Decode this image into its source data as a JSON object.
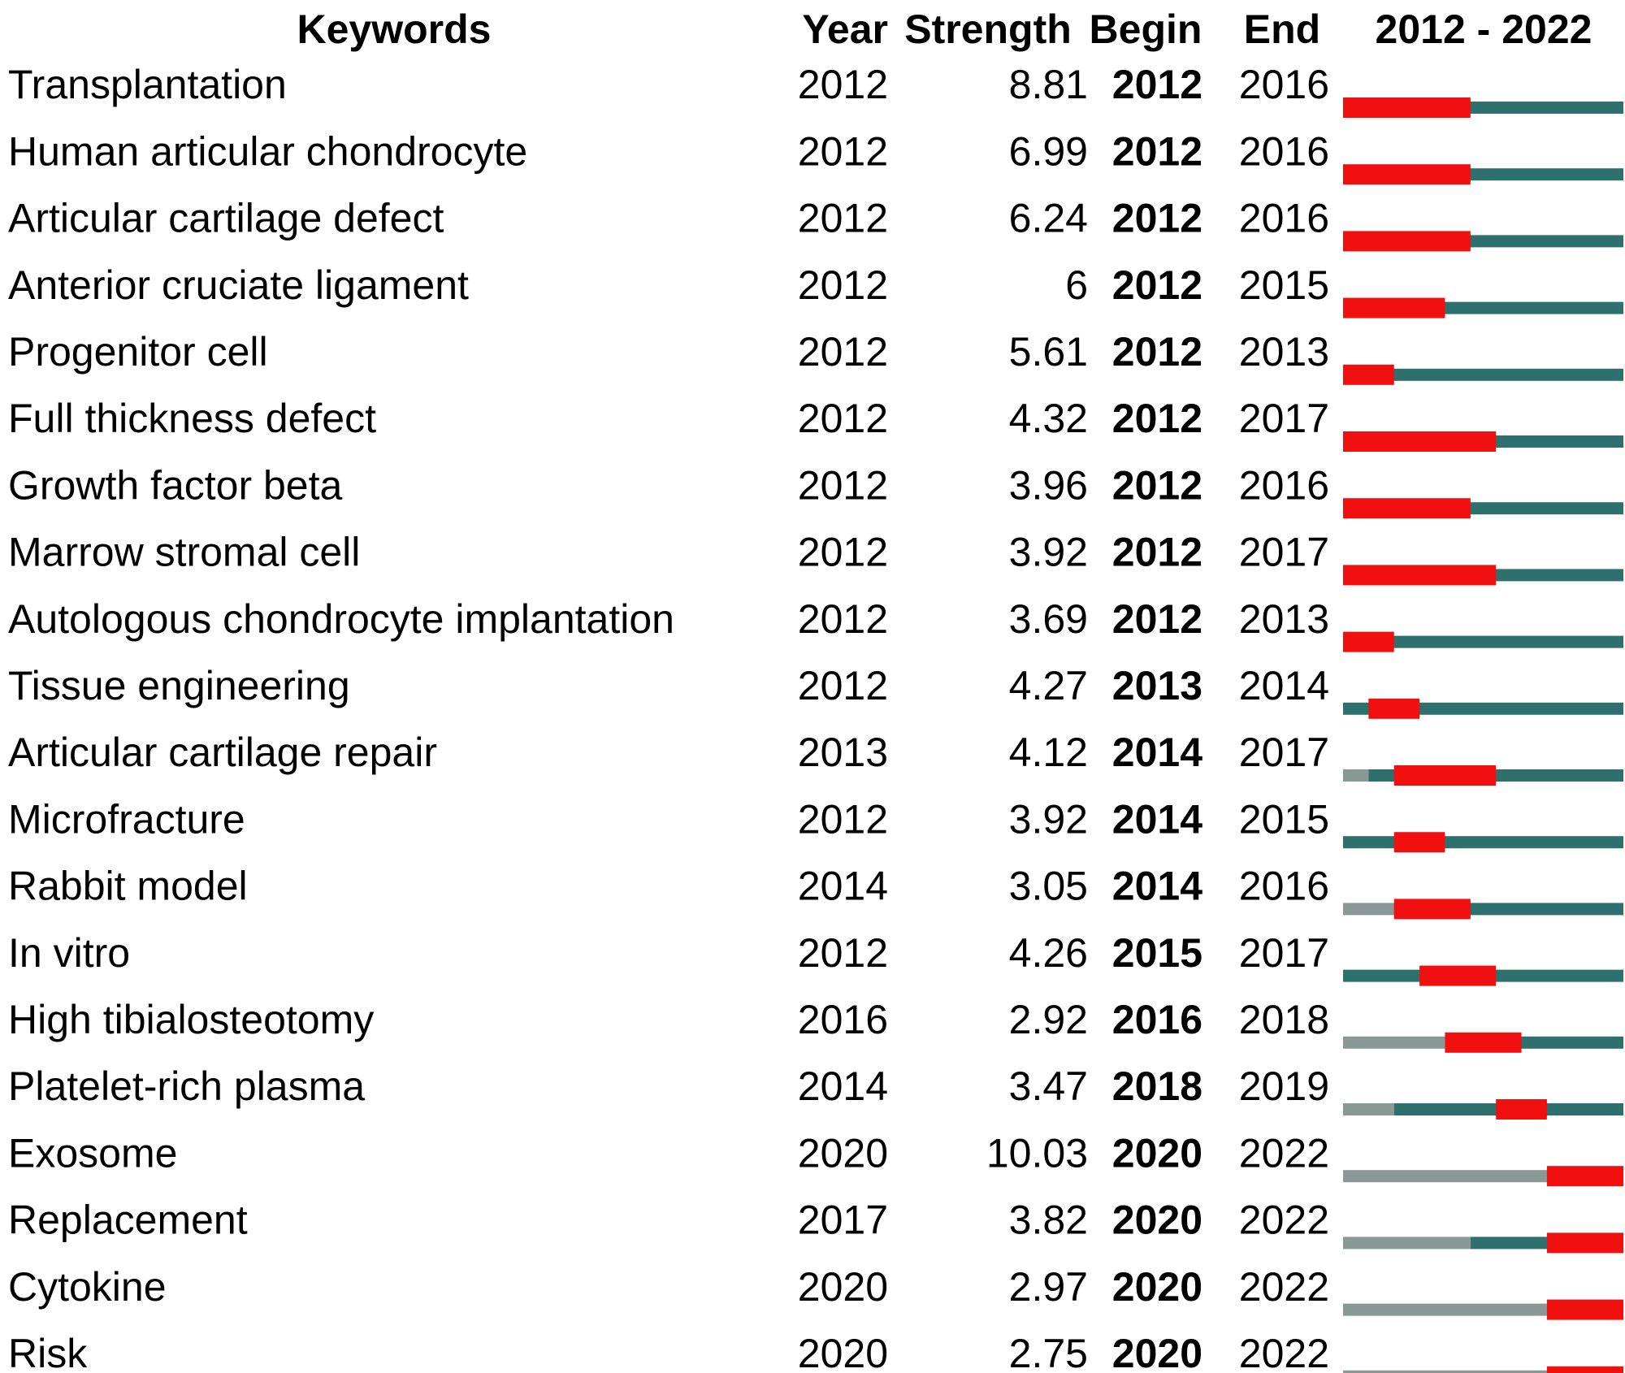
{
  "chart_data": {
    "type": "burst",
    "columns": [
      "Keywords",
      "Year",
      "Strength",
      "Begin",
      "End",
      "2012 - 2022"
    ],
    "xlim": [
      2012,
      2022
    ],
    "colors": {
      "burst": "#f01010",
      "active": "#2e706d",
      "absent": "#8a9996"
    },
    "rows": [
      {
        "keyword": "Transplantation",
        "year": 2012,
        "strength": 8.81,
        "begin": 2012,
        "end": 2016
      },
      {
        "keyword": "Human articular chondrocyte",
        "year": 2012,
        "strength": 6.99,
        "begin": 2012,
        "end": 2016
      },
      {
        "keyword": "Articular cartilage defect",
        "year": 2012,
        "strength": 6.24,
        "begin": 2012,
        "end": 2016
      },
      {
        "keyword": "Anterior cruciate ligament",
        "year": 2012,
        "strength": 6,
        "begin": 2012,
        "end": 2015
      },
      {
        "keyword": "Progenitor cell",
        "year": 2012,
        "strength": 5.61,
        "begin": 2012,
        "end": 2013
      },
      {
        "keyword": "Full thickness defect",
        "year": 2012,
        "strength": 4.32,
        "begin": 2012,
        "end": 2017
      },
      {
        "keyword": "Growth factor beta",
        "year": 2012,
        "strength": 3.96,
        "begin": 2012,
        "end": 2016
      },
      {
        "keyword": "Marrow stromal cell",
        "year": 2012,
        "strength": 3.92,
        "begin": 2012,
        "end": 2017
      },
      {
        "keyword": "Autologous chondrocyte implantation",
        "year": 2012,
        "strength": 3.69,
        "begin": 2012,
        "end": 2013
      },
      {
        "keyword": "Tissue engineering",
        "year": 2012,
        "strength": 4.27,
        "begin": 2013,
        "end": 2014
      },
      {
        "keyword": "Articular cartilage repair",
        "year": 2013,
        "strength": 4.12,
        "begin": 2014,
        "end": 2017
      },
      {
        "keyword": "Microfracture",
        "year": 2012,
        "strength": 3.92,
        "begin": 2014,
        "end": 2015
      },
      {
        "keyword": "Rabbit model",
        "year": 2014,
        "strength": 3.05,
        "begin": 2014,
        "end": 2016
      },
      {
        "keyword": "In vitro",
        "year": 2012,
        "strength": 4.26,
        "begin": 2015,
        "end": 2017
      },
      {
        "keyword": "High tibialosteotomy",
        "year": 2016,
        "strength": 2.92,
        "begin": 2016,
        "end": 2018
      },
      {
        "keyword": "Platelet-rich plasma",
        "year": 2014,
        "strength": 3.47,
        "begin": 2018,
        "end": 2019
      },
      {
        "keyword": "Exosome",
        "year": 2020,
        "strength": 10.03,
        "begin": 2020,
        "end": 2022
      },
      {
        "keyword": "Replacement",
        "year": 2017,
        "strength": 3.82,
        "begin": 2020,
        "end": 2022
      },
      {
        "keyword": "Cytokine",
        "year": 2020,
        "strength": 2.97,
        "begin": 2020,
        "end": 2022
      },
      {
        "keyword": "Risk",
        "year": 2020,
        "strength": 2.75,
        "begin": 2020,
        "end": 2022
      }
    ]
  }
}
